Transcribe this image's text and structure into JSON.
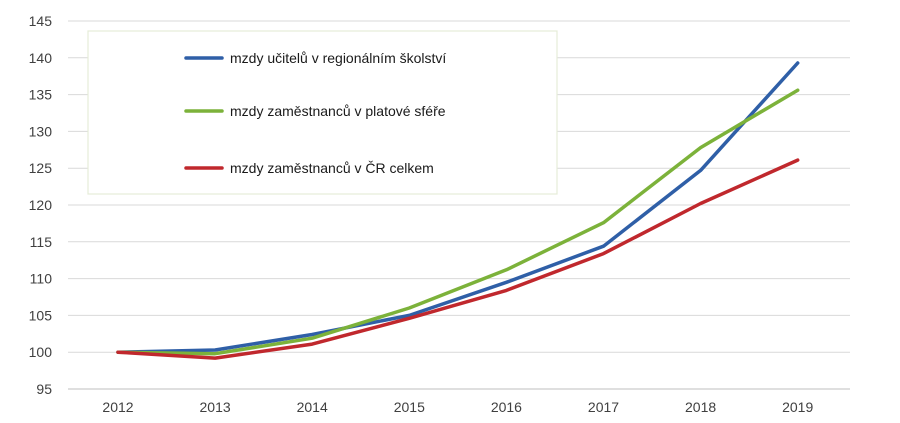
{
  "chart_data": {
    "type": "line",
    "x": [
      2012,
      2013,
      2014,
      2015,
      2016,
      2017,
      2018,
      2019
    ],
    "x_tick_labels": [
      "2012",
      "2013",
      "2014",
      "2015",
      "2016",
      "2017",
      "2018",
      "2019"
    ],
    "ylim": [
      95,
      145
    ],
    "y_ticks": [
      95,
      100,
      105,
      110,
      115,
      120,
      125,
      130,
      135,
      140,
      145
    ],
    "y_tick_labels": [
      "95",
      "100",
      "105",
      "110",
      "115",
      "120",
      "125",
      "130",
      "135",
      "140",
      "145"
    ],
    "grid": true,
    "legend_position": "top-left (inside plot)",
    "series": [
      {
        "name": "mzdy učitelů v regionálním školství",
        "color": "#2f5fa7",
        "values": [
          100.0,
          100.3,
          102.4,
          105.0,
          109.5,
          114.4,
          124.7,
          139.3
        ]
      },
      {
        "name": "mzdy zaměstnanců v platové sféře",
        "color": "#7cb23a",
        "values": [
          100.0,
          99.8,
          101.9,
          106.0,
          111.2,
          117.6,
          127.8,
          135.6
        ]
      },
      {
        "name": "mzdy zaměstnanců v ČR celkem",
        "color": "#c0282d",
        "values": [
          100.0,
          99.2,
          101.1,
          104.6,
          108.4,
          113.4,
          120.2,
          126.1
        ]
      }
    ]
  }
}
